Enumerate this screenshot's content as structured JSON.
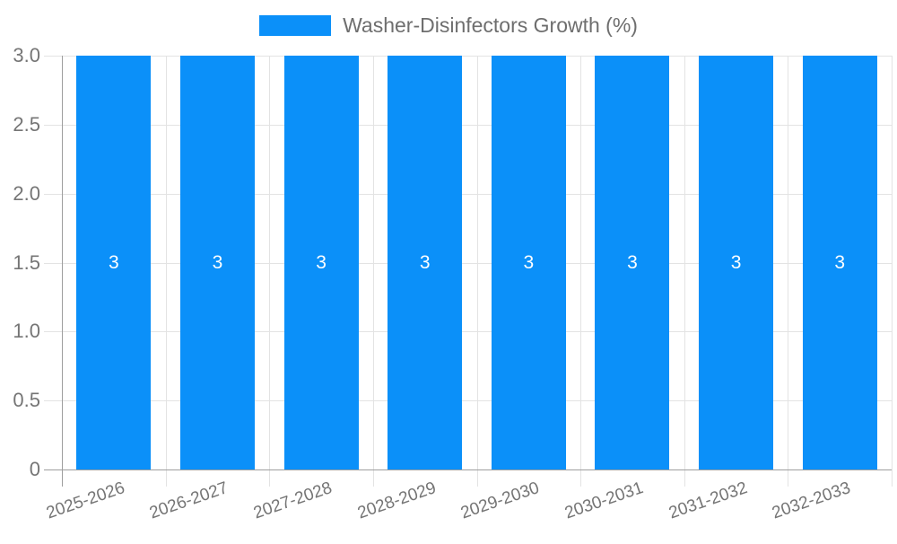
{
  "legend": {
    "swatch_color": "#0b90f9",
    "label": "Washer-Disinfectors Growth (%)"
  },
  "chart_data": {
    "type": "bar",
    "title": "Washer-Disinfectors Growth (%)",
    "categories": [
      "2025-2026",
      "2026-2027",
      "2027-2028",
      "2028-2029",
      "2029-2030",
      "2030-2031",
      "2031-2032",
      "2032-2033"
    ],
    "series": [
      {
        "name": "Washer-Disinfectors Growth (%)",
        "values": [
          3,
          3,
          3,
          3,
          3,
          3,
          3,
          3
        ]
      }
    ],
    "value_labels": [
      "3",
      "3",
      "3",
      "3",
      "3",
      "3",
      "3",
      "3"
    ],
    "xlabel": "",
    "ylabel": "",
    "ylim": [
      0,
      3
    ],
    "yticks": [
      0,
      0.5,
      1,
      1.5,
      2,
      2.5,
      3
    ],
    "ytick_labels": [
      "0",
      "0.5",
      "1.0",
      "1.5",
      "2.0",
      "2.5",
      "3.0"
    ],
    "grid": true,
    "legend_position": "top",
    "bar_color": "#0b90f9",
    "value_label_color": "#ffffff",
    "axis_color": "#9e9e9e",
    "gridline_color": "#e3e3e3",
    "tick_label_color": "#757575"
  }
}
